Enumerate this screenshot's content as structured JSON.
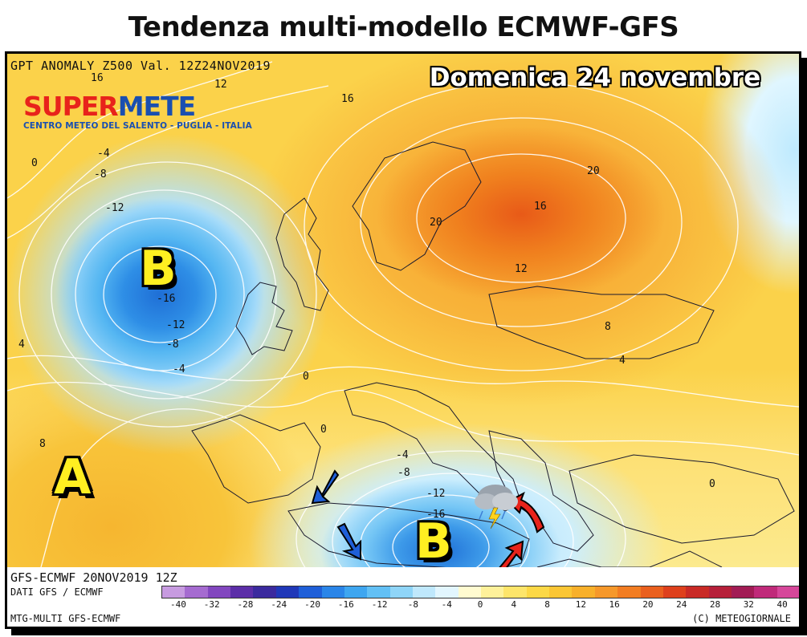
{
  "page": {
    "title": "Tendenza multi-modello ECMWF-GFS"
  },
  "map": {
    "header": "GPT ANOMALY Z500 Val. 12Z24NOV2019",
    "date_banner": "Domenica 24 novembre",
    "logo": {
      "name_red": "SUPER",
      "name_blue": "METE",
      "subtitle": "CENTRO METEO DEL SALENTO - PUGLIA - ITALIA"
    },
    "pressure_systems": [
      {
        "label": "B",
        "kind": "low",
        "region": "north-atlantic"
      },
      {
        "label": "A",
        "kind": "high",
        "region": "azores"
      },
      {
        "label": "B",
        "kind": "low",
        "region": "central-mediterranean"
      }
    ],
    "contour_labels": [
      "16",
      "12",
      "16",
      "20",
      "20",
      "16",
      "12",
      "8",
      "4",
      "0",
      "-4",
      "-8",
      "-12",
      "-16",
      "-12",
      "-8",
      "-4",
      "4",
      "0",
      "0",
      "8",
      "-4",
      "-8",
      "-12",
      "-16",
      "0"
    ],
    "icons": [
      "storm-cloud-icon",
      "wind-arrow-icon"
    ],
    "colors": {
      "strong_positive": "#e85a18",
      "positive": "#f6a02c",
      "mild_positive": "#fbd24a",
      "neutral": "#fcef9c",
      "mild_negative": "#b4e2fb",
      "negative": "#2e8ee6",
      "arrow_blue": "#1f5fd8",
      "arrow_red": "#e8231b",
      "pressure_letter": "#ffef21"
    }
  },
  "footer": {
    "run": "GFS-ECMWF 20NOV2019 12Z",
    "source": "DATI GFS / ECMWF",
    "model": "MTG-MULTI GFS-ECMWF",
    "copyright": "(C) METEOGIORNALE"
  },
  "legend": {
    "ticks": [
      "-40",
      "-32",
      "-28",
      "-24",
      "-20",
      "-16",
      "-12",
      "-8",
      "-4",
      "0",
      "4",
      "8",
      "12",
      "16",
      "20",
      "24",
      "28",
      "32",
      "40"
    ],
    "colors": [
      "#c79be0",
      "#a56bd0",
      "#8247bf",
      "#5c2ea8",
      "#3b2a9e",
      "#2038b8",
      "#1f5fd8",
      "#2a85e8",
      "#3ea6f0",
      "#62c0f5",
      "#8fd5f8",
      "#bfe8fc",
      "#e2f6fe",
      "#fffbd0",
      "#fef19a",
      "#fde56a",
      "#fcd846",
      "#fbc634",
      "#f8b02a",
      "#f6982a",
      "#f27d22",
      "#ea601e",
      "#de401c",
      "#c92a26",
      "#b6203a",
      "#a21c55",
      "#c02a7a",
      "#d6479a"
    ]
  }
}
